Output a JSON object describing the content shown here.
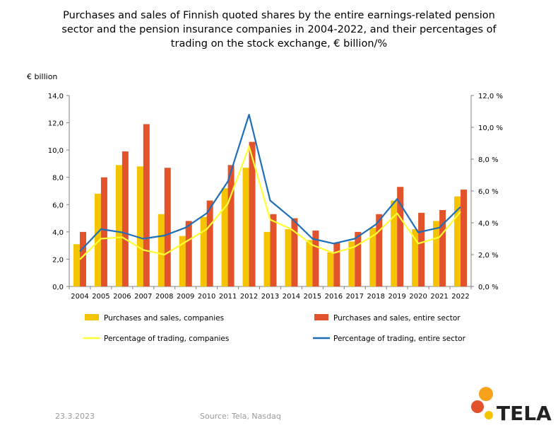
{
  "title_lines": [
    "Purchases and sales of Finnish quoted shares by the entire earnings-related pension",
    "sector and the pension insurance companies in 2004-2022, and their percentages of",
    "trading on the stock exchange, € billion/%"
  ],
  "footer": {
    "date": "23.3.2023",
    "source": "Source: Tela, Nasdaq"
  },
  "logo": {
    "text": "TELA",
    "colors": [
      "#f7a21b",
      "#e2532b",
      "#f5c400"
    ]
  },
  "chart_data": {
    "type": "bar",
    "title": "Purchases and sales of Finnish quoted shares by the entire earnings-related pension sector and the pension insurance companies in 2004-2022, and their percentages of trading on the stock exchange, € billion/%",
    "ylabel": "€ billion",
    "categories": [
      "2004",
      "2005",
      "2006",
      "2007",
      "2008",
      "2009",
      "2010",
      "2011",
      "2012",
      "2013",
      "2014",
      "2015",
      "2016",
      "2017",
      "2018",
      "2019",
      "2020",
      "2021",
      "2022"
    ],
    "ylim": [
      0,
      14
    ],
    "y_ticks": [
      "0,0",
      "2,0",
      "4,0",
      "6,0",
      "8,0",
      "10,0",
      "12,0",
      "14,0"
    ],
    "y2lim": [
      0,
      12
    ],
    "y2_ticks": [
      "0,0 %",
      "2,0 %",
      "4,0 %",
      "6,0 %",
      "8,0 %",
      "10,0 %",
      "12,0 %"
    ],
    "grid": false,
    "legend_position": "bottom",
    "series": [
      {
        "name": "Purchases and sales, companies",
        "kind": "bar",
        "axis": "left",
        "color": "#f5c400",
        "values": [
          3.1,
          6.8,
          8.9,
          8.8,
          5.3,
          3.7,
          5.1,
          7.2,
          8.7,
          4.0,
          4.2,
          3.4,
          2.5,
          3.3,
          4.3,
          6.3,
          4.2,
          4.8,
          6.6
        ]
      },
      {
        "name": "Purchases and sales, entire sector",
        "kind": "bar",
        "axis": "left",
        "color": "#e2532b",
        "values": [
          4.0,
          8.0,
          9.9,
          11.9,
          8.7,
          4.8,
          6.3,
          8.9,
          10.6,
          5.3,
          5.0,
          4.1,
          3.2,
          4.0,
          5.3,
          7.3,
          5.4,
          5.6,
          7.1
        ]
      },
      {
        "name": "Percentage of trading, companies",
        "kind": "line",
        "axis": "right",
        "color": "#ffff33",
        "values": [
          1.7,
          3.0,
          3.1,
          2.3,
          2.0,
          2.8,
          3.6,
          5.2,
          8.8,
          4.2,
          3.6,
          2.6,
          2.1,
          2.5,
          3.3,
          4.6,
          2.7,
          3.1,
          4.7
        ]
      },
      {
        "name": "Percentage of trading, entire sector",
        "kind": "line",
        "axis": "right",
        "color": "#1f6fb8",
        "values": [
          2.2,
          3.6,
          3.4,
          3.0,
          3.2,
          3.7,
          4.6,
          6.6,
          10.8,
          5.4,
          4.3,
          3.0,
          2.7,
          3.0,
          3.9,
          5.5,
          3.4,
          3.7,
          5.0
        ]
      }
    ]
  }
}
